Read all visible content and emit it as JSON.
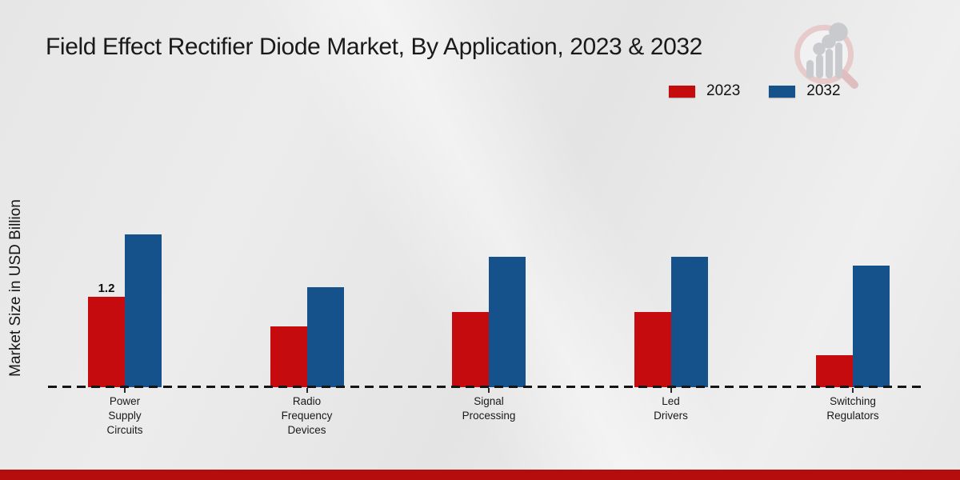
{
  "title": "Field Effect Rectifier Diode Market, By Application, 2023 & 2032",
  "colors": {
    "series_2023": "#c50b0d",
    "series_2032": "#15518b",
    "footer_accent": "#b50d0d",
    "baseline": "#151515",
    "logo_pink": "#e7caca",
    "logo_gray": "#c9cace"
  },
  "legend": {
    "items": [
      {
        "label": "2023",
        "color": "#c50b0d"
      },
      {
        "label": "2032",
        "color": "#15518b"
      }
    ]
  },
  "chart_data": {
    "type": "bar",
    "title": "Field Effect Rectifier Diode Market, By Application, 2023 & 2032",
    "ylabel": "Market Size in USD Billion",
    "xlabel": "",
    "grid": false,
    "legend_position": "top-right",
    "baseline_style": "dashed",
    "categories": [
      "Power\nSupply\nCircuits",
      "Radio\nFrequency\nDevices",
      "Signal\nProcessing",
      "Led\nDrivers",
      "Switching\nRegulators"
    ],
    "series": [
      {
        "name": "2023",
        "color": "#c50b0d",
        "values": [
          1.2,
          0.8,
          1.0,
          1.0,
          0.42
        ]
      },
      {
        "name": "2032",
        "color": "#15518b",
        "values": [
          2.02,
          1.32,
          1.72,
          1.72,
          1.61
        ]
      }
    ],
    "bar_labels": [
      {
        "series_index": 0,
        "category_index": 0,
        "text": "1.2"
      }
    ],
    "ylim": [
      0,
      2.4
    ]
  }
}
